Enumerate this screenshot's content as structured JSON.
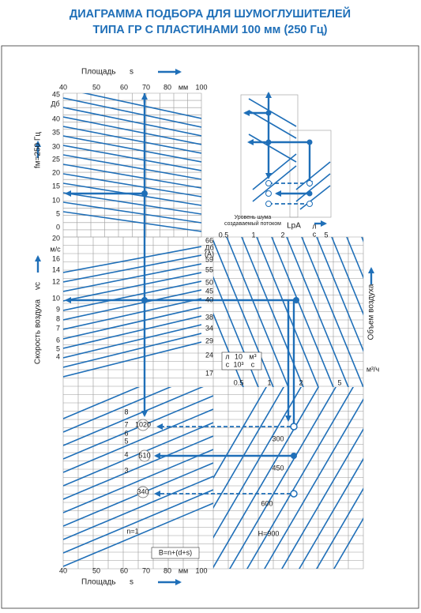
{
  "title": {
    "line1": "ДИАГРАММА ПОДБОРА ДЛЯ ШУМОГЛУШИТЕЛЕЙ",
    "line2": "ТИПА ГР С ПЛАСТИНАМИ 100 мм (250 Гц)"
  },
  "area_top": {
    "label": "Площадь",
    "symbol": "s",
    "ticks": [
      "40",
      "50",
      "60",
      "70",
      "80",
      "мм",
      "100"
    ]
  },
  "area_bottom": {
    "label": "Площадь",
    "symbol": "s",
    "ticks": [
      "40",
      "50",
      "60",
      "70",
      "80",
      "мм",
      "100"
    ]
  },
  "fm": {
    "label": "fм=250 Гц",
    "unit": "Дб",
    "ticks": [
      "45",
      "40",
      "35",
      "30",
      "25",
      "20",
      "15",
      "10",
      "5",
      "0"
    ]
  },
  "velocity": {
    "label": "Скорость воздуха",
    "symbol": "vc",
    "unit": "м/с",
    "ticks": [
      "20",
      "16",
      "14",
      "12",
      "10",
      "9",
      "8",
      "7",
      "6",
      "5",
      "4"
    ]
  },
  "noise": {
    "label_lines": [
      "Уровень шума",
      "создаваемый потоком"
    ],
    "symbol": "LpA",
    "unit": "Дб",
    "unit2": "(А)",
    "ticks": [
      "66",
      "59",
      "55",
      "50",
      "45",
      "40",
      "38",
      "34",
      "29",
      "24",
      "17"
    ]
  },
  "flow": {
    "label": "Объем воздуха",
    "unit_top_num": "л",
    "unit_top_den": "с",
    "unit_bottom": "м³/ч",
    "ticks_top": [
      "0.5",
      "1",
      "2",
      "5"
    ],
    "ticks_bottom": [
      "0.5",
      "1",
      "2",
      "5"
    ],
    "conversion": {
      "a_num": "л",
      "a_den": "с",
      "f_num": "10",
      "f_den": "10³",
      "b_num": "м³",
      "b_den": "с"
    }
  },
  "labels": {
    "n": [
      "8",
      "7",
      "6",
      "5",
      "4",
      "3",
      "n=1"
    ],
    "h": [
      "300",
      "450",
      "600",
      "H=900"
    ],
    "b": [
      "1020",
      "510",
      "340"
    ],
    "formula": "B=n+(d+s)"
  }
}
